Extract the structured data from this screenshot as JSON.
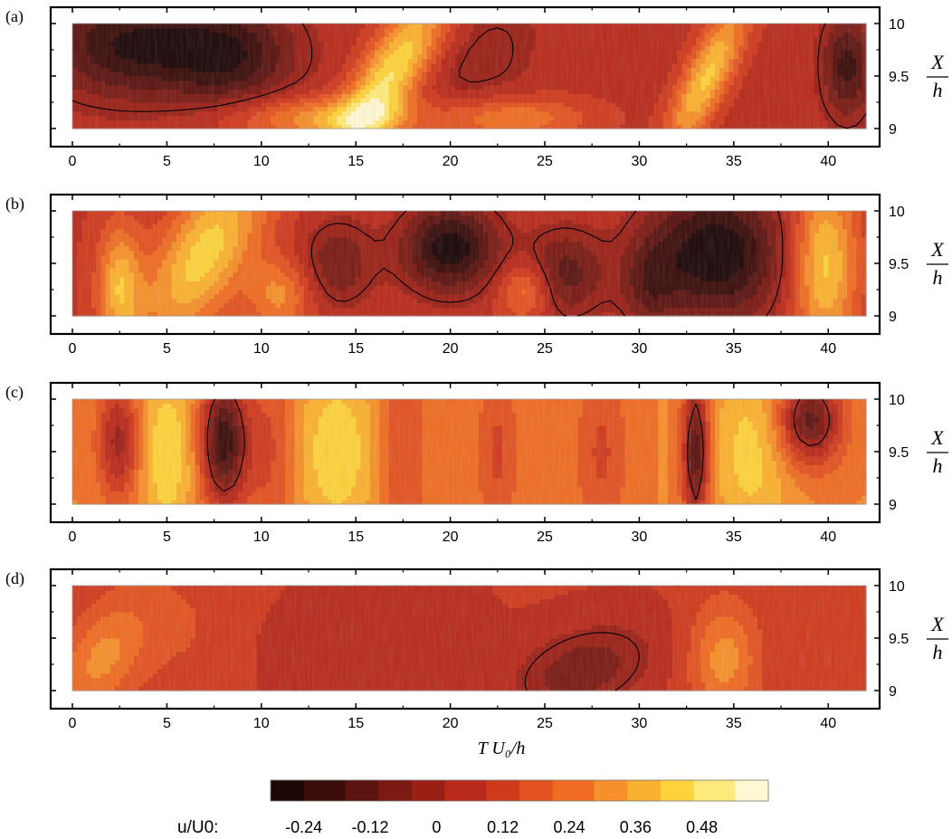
{
  "chart_data": {
    "type": "heatmap",
    "panels": [
      {
        "label": "(a)",
        "xlim": [
          0,
          42
        ],
        "ylim": [
          9,
          10
        ],
        "xticks": [
          "0",
          "5",
          "10",
          "15",
          "20",
          "25",
          "30",
          "35",
          "40"
        ],
        "yticks": [
          "9",
          "9.5",
          "10"
        ],
        "base": 0.06,
        "features": [
          {
            "t": 3,
            "x": 9.8,
            "sigma_t": 3.2,
            "sigma_x": 0.35,
            "amp": -0.3,
            "slant": 0.0
          },
          {
            "t": 8.5,
            "x": 9.7,
            "sigma_t": 2.4,
            "sigma_x": 0.35,
            "amp": -0.26,
            "slant": 0.0
          },
          {
            "t": 16.8,
            "x": 9.5,
            "sigma_t": 1.3,
            "sigma_x": 0.6,
            "amp": 0.42,
            "slant": 3.0
          },
          {
            "t": 13,
            "x": 9.1,
            "sigma_t": 3.5,
            "sigma_x": 0.15,
            "amp": 0.26,
            "slant": 0.0
          },
          {
            "t": 21.5,
            "x": 9.6,
            "sigma_t": 2.2,
            "sigma_x": 0.5,
            "amp": -0.08,
            "slant": 2.0
          },
          {
            "t": 23,
            "x": 9.1,
            "sigma_t": 3.0,
            "sigma_x": 0.15,
            "amp": 0.22,
            "slant": 0.0
          },
          {
            "t": 33.6,
            "x": 9.5,
            "sigma_t": 0.9,
            "sigma_x": 0.5,
            "amp": 0.36,
            "slant": 2.4
          },
          {
            "t": 41,
            "x": 9.6,
            "sigma_t": 0.9,
            "sigma_x": 0.35,
            "amp": -0.26,
            "slant": 0.0
          }
        ]
      },
      {
        "label": "(b)",
        "xlim": [
          0,
          42
        ],
        "ylim": [
          9,
          10
        ],
        "xticks": [
          "0",
          "5",
          "10",
          "15",
          "20",
          "25",
          "30",
          "35",
          "40"
        ],
        "yticks": [
          "9",
          "9.5",
          "10"
        ],
        "base": 0.08,
        "features": [
          {
            "t": 7,
            "x": 9.6,
            "sigma_t": 1.8,
            "sigma_x": 0.6,
            "amp": 0.36,
            "slant": 2.5
          },
          {
            "t": 2.5,
            "x": 9.3,
            "sigma_t": 0.8,
            "sigma_x": 0.4,
            "amp": 0.3,
            "slant": 0.0
          },
          {
            "t": 20,
            "x": 9.65,
            "sigma_t": 1.8,
            "sigma_x": 0.3,
            "amp": -0.36,
            "slant": 0.0
          },
          {
            "t": 14,
            "x": 9.5,
            "sigma_t": 1.4,
            "sigma_x": 0.3,
            "amp": -0.18,
            "slant": 0.0
          },
          {
            "t": 26,
            "x": 9.4,
            "sigma_t": 1.5,
            "sigma_x": 0.3,
            "amp": -0.22,
            "slant": 0.0
          },
          {
            "t": 34,
            "x": 9.6,
            "sigma_t": 2.6,
            "sigma_x": 0.45,
            "amp": -0.38,
            "slant": 0.0
          },
          {
            "t": 39.8,
            "x": 9.5,
            "sigma_t": 1.2,
            "sigma_x": 0.6,
            "amp": 0.36,
            "slant": 0.0
          },
          {
            "t": 11,
            "x": 9.2,
            "sigma_t": 1.2,
            "sigma_x": 0.25,
            "amp": 0.22,
            "slant": 0.0
          },
          {
            "t": 24,
            "x": 9.25,
            "sigma_t": 1.0,
            "sigma_x": 0.2,
            "amp": 0.22,
            "slant": 0.0
          },
          {
            "t": 30.5,
            "x": 9.3,
            "sigma_t": 1.0,
            "sigma_x": 0.3,
            "amp": -0.15,
            "slant": 0.0
          }
        ]
      },
      {
        "label": "(c)",
        "xlim": [
          0,
          42
        ],
        "ylim": [
          9,
          10
        ],
        "xticks": [
          "0",
          "5",
          "10",
          "15",
          "20",
          "25",
          "30",
          "35",
          "40"
        ],
        "yticks": [
          "9",
          "9.5",
          "10"
        ],
        "base": 0.28,
        "features": [
          {
            "t": 8,
            "x": 9.6,
            "sigma_t": 0.9,
            "sigma_x": 0.45,
            "amp": -0.5,
            "slant": 0.0
          },
          {
            "t": 33,
            "x": 9.5,
            "sigma_t": 0.5,
            "sigma_x": 0.5,
            "amp": -0.45,
            "slant": 0.0
          },
          {
            "t": 39,
            "x": 9.8,
            "sigma_t": 1.2,
            "sigma_x": 0.3,
            "amp": -0.42,
            "slant": 0.0
          },
          {
            "t": 2.5,
            "x": 9.6,
            "sigma_t": 0.8,
            "sigma_x": 0.4,
            "amp": -0.3,
            "slant": 0.0
          },
          {
            "t": 10.5,
            "x": 9.5,
            "sigma_t": 0.9,
            "sigma_x": 0.7,
            "amp": -0.14,
            "slant": 0.0
          },
          {
            "t": 17.5,
            "x": 9.5,
            "sigma_t": 0.9,
            "sigma_x": 0.7,
            "amp": -0.14,
            "slant": 0.0
          },
          {
            "t": 22.5,
            "x": 9.5,
            "sigma_t": 0.8,
            "sigma_x": 0.7,
            "amp": -0.14,
            "slant": 0.0
          },
          {
            "t": 28,
            "x": 9.5,
            "sigma_t": 1.0,
            "sigma_x": 0.7,
            "amp": -0.14,
            "slant": 0.0
          },
          {
            "t": 5,
            "x": 9.5,
            "sigma_t": 1.2,
            "sigma_x": 0.6,
            "amp": 0.18,
            "slant": 0.0
          },
          {
            "t": 14,
            "x": 9.5,
            "sigma_t": 1.5,
            "sigma_x": 0.6,
            "amp": 0.18,
            "slant": 0.0
          },
          {
            "t": 36,
            "x": 9.5,
            "sigma_t": 1.5,
            "sigma_x": 0.6,
            "amp": 0.16,
            "slant": 0.0
          }
        ]
      },
      {
        "label": "(d)",
        "xlim": [
          0,
          42
        ],
        "ylim": [
          9,
          10
        ],
        "xticks": [
          "0",
          "5",
          "10",
          "15",
          "20",
          "25",
          "30",
          "35",
          "40"
        ],
        "yticks": [
          "9",
          "9.5",
          "10"
        ],
        "base": 0.09,
        "features": [
          {
            "t": 1.5,
            "x": 9.3,
            "sigma_t": 1.5,
            "sigma_x": 0.4,
            "amp": 0.2,
            "slant": 2.0
          },
          {
            "t": 27,
            "x": 9.2,
            "sigma_t": 2.4,
            "sigma_x": 0.3,
            "amp": -0.18,
            "slant": 3.0
          },
          {
            "t": 34.5,
            "x": 9.3,
            "sigma_t": 1.3,
            "sigma_x": 0.4,
            "amp": 0.22,
            "slant": 0.0
          },
          {
            "t": 16.5,
            "x": 9.5,
            "sigma_t": 3.0,
            "sigma_x": 0.5,
            "amp": -0.04,
            "slant": 0.0
          },
          {
            "t": 11,
            "x": 9.3,
            "sigma_t": 1.0,
            "sigma_x": 0.3,
            "amp": -0.05,
            "slant": 0.0
          },
          {
            "t": 6,
            "x": 9.6,
            "sigma_t": 2.5,
            "sigma_x": 0.6,
            "amp": 0.06,
            "slant": 0.0
          }
        ]
      }
    ],
    "y_axis_label_num": "X",
    "y_axis_label_den": "h",
    "x_axis_label": "T U₀/h",
    "colorbar": {
      "label": "u/U0:",
      "range": [
        -0.3,
        0.6
      ],
      "ticks": [
        "-0.24",
        "-0.12",
        "0",
        "0.12",
        "0.24",
        "0.36",
        "0.48"
      ],
      "tick_values": [
        -0.24,
        -0.12,
        0,
        0.12,
        0.24,
        0.36,
        0.48
      ],
      "stops": [
        "#1c0606",
        "#3a0c0a",
        "#5a130f",
        "#7a1a13",
        "#9a2016",
        "#b82a1a",
        "#cf3a1d",
        "#e25220",
        "#ef6c22",
        "#f6902a",
        "#fbb12f",
        "#fdd23a",
        "#feea7a",
        "#fff8d2"
      ]
    }
  }
}
